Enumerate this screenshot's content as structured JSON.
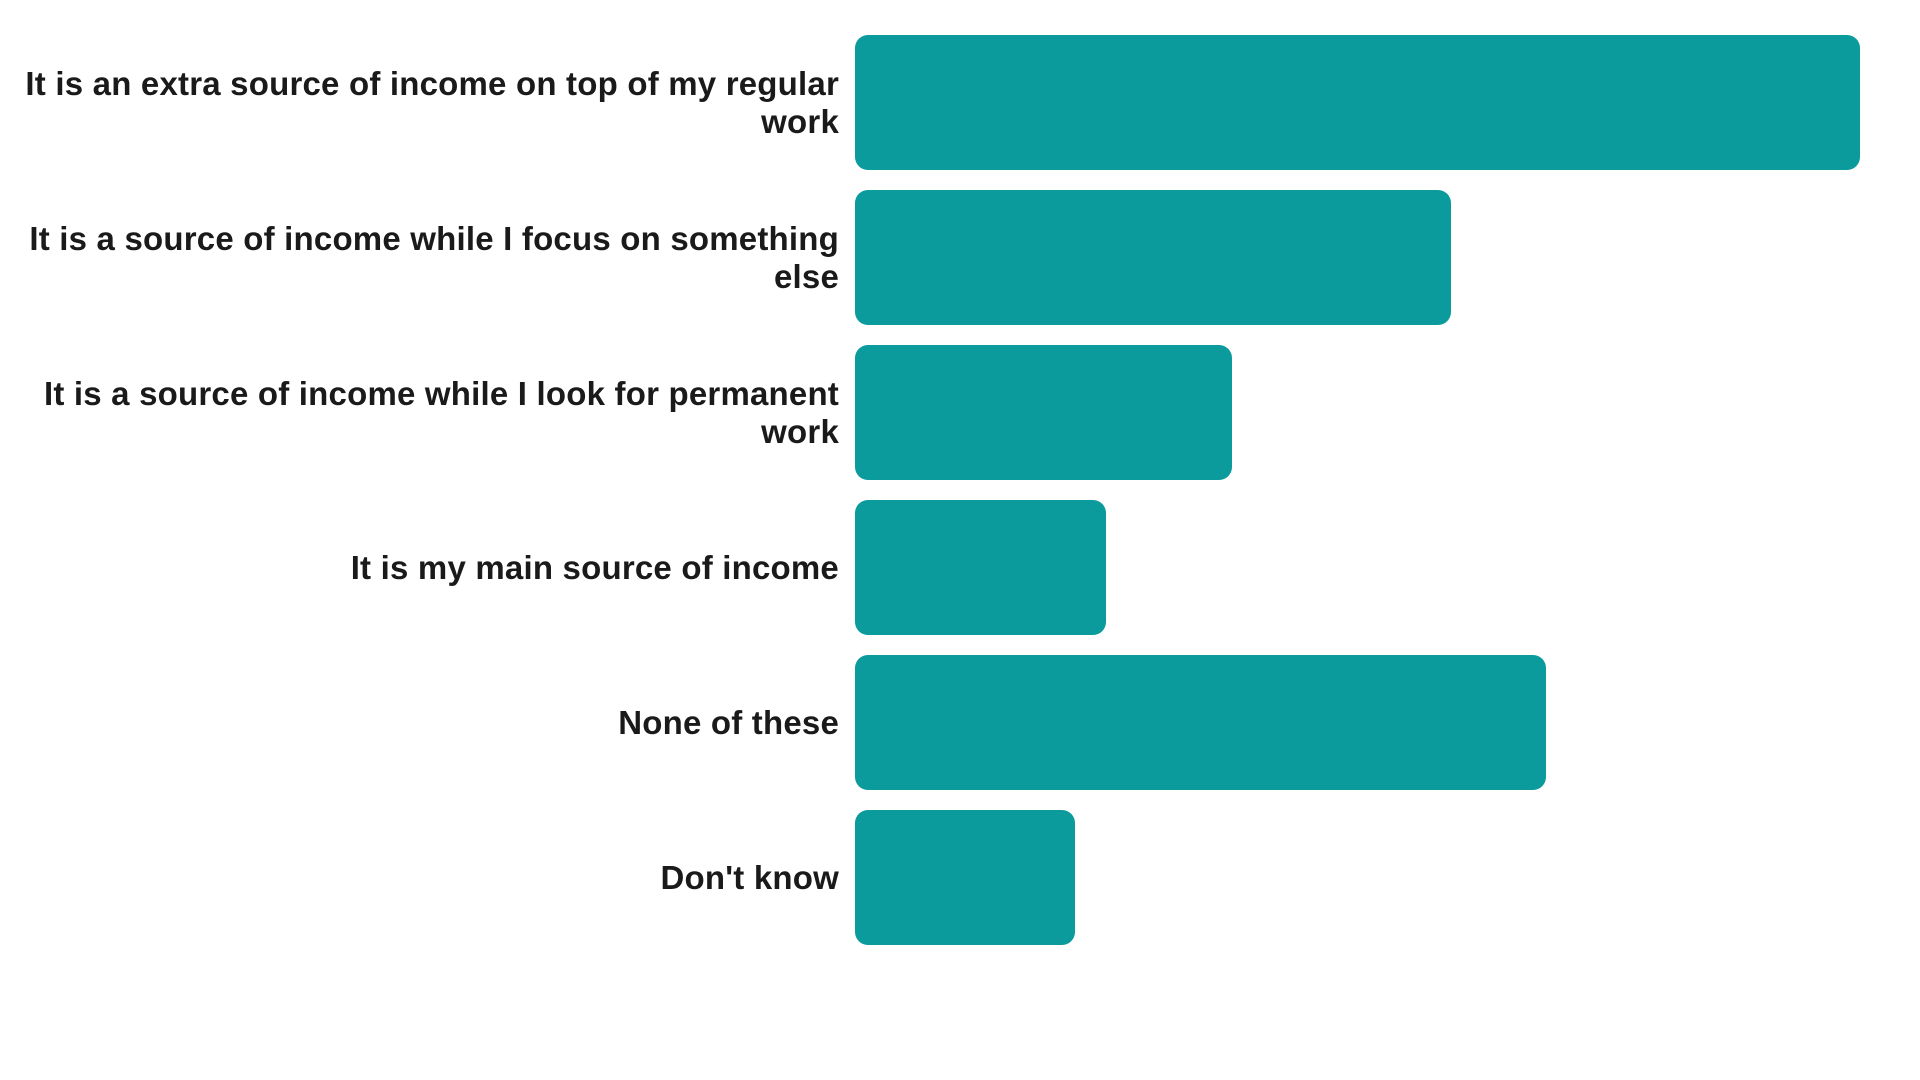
{
  "chart_data": {
    "type": "bar",
    "orientation": "horizontal",
    "title": "",
    "categories": [
      "It is an extra source of income on top of my regular work",
      "It is a source of income while I focus on something else",
      "It is a source of income while I look for permanent work",
      "It is my main source of income",
      "None of these",
      "Don't know"
    ],
    "values": [
      32,
      19,
      12,
      8,
      22,
      7
    ],
    "unit": "%",
    "xlabel": "",
    "ylabel": "",
    "x_ticks": [
      {
        "label": "0%",
        "value": 0
      },
      {
        "label": "10%",
        "value": 10
      },
      {
        "label": "20%",
        "value": 20
      },
      {
        "label": "30%",
        "value": 30
      }
    ],
    "axis_max": 32.65,
    "grid": false,
    "legend_position": "none",
    "colors": {
      "bar": "#0b9b9c",
      "label_text": "#1a1a1a",
      "tick_text": "#111111",
      "background": "#ffffff"
    }
  }
}
